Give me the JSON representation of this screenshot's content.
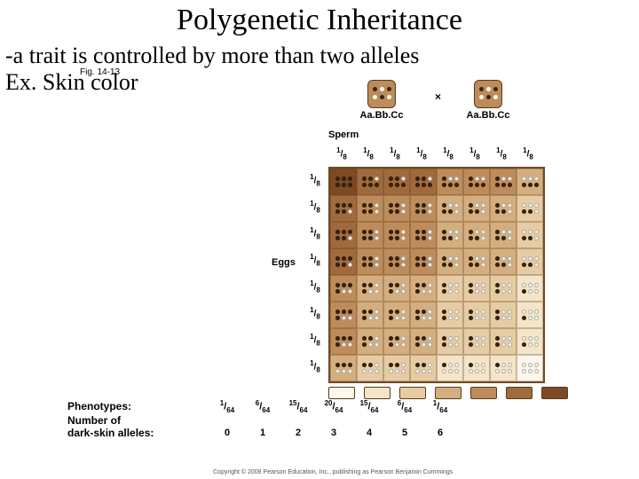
{
  "title": "Polygenetic Inheritance",
  "subtitle": "-a trait is controlled by more than two alleles",
  "fig_note": "Fig. 14-13",
  "example": "Ex. Skin color",
  "cross_symbol": "×",
  "sperm_label": "Sperm",
  "eggs_label": "Eggs",
  "parent_genotype": "Aa.Bb.Cc",
  "gamete_fraction": "1/8",
  "skin_colors": [
    "#fdf6ec",
    "#f4e4c8",
    "#e6cba3",
    "#d4ae7e",
    "#bd8c5a",
    "#a06a3c",
    "#7d4a24",
    "#5a2f12"
  ],
  "dark_dot": "#3a2410",
  "light_dot": "#f8f8f0",
  "parent_face_color": "#bd8c5a",
  "phenotypes_label": "Phenotypes:",
  "number_label": "Number of",
  "alleles_label": "dark-skin alleles:",
  "phenotype_fractions": [
    "1/64",
    "6/64",
    "15/64",
    "20/64",
    "15/64",
    "6/64",
    "1/64"
  ],
  "allele_counts": [
    "0",
    "1",
    "2",
    "3",
    "4",
    "5",
    "6"
  ],
  "grid_size": 8,
  "cell_size": 30,
  "copyright": "Copyright © 2008 Pearson Education, Inc., publishing as Pearson Benjamin Cummings"
}
